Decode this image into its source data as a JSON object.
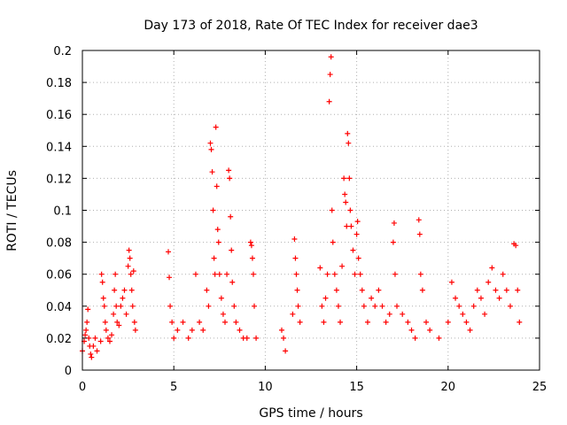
{
  "chart_data": {
    "type": "scatter",
    "title": "Day 173 of 2018, Rate Of TEC Index for receiver dae3",
    "xlabel": "GPS time / hours",
    "ylabel": "ROTI / TECUs",
    "xlim": [
      0,
      25
    ],
    "ylim": [
      0,
      0.2
    ],
    "x_ticks": [
      "0",
      "5",
      "10",
      "15",
      "20",
      "25"
    ],
    "y_ticks": [
      "0",
      "0.02",
      "0.04",
      "0.06",
      "0.08",
      "0.1",
      "0.12",
      "0.14",
      "0.16",
      "0.18",
      "0.2"
    ],
    "grid": true,
    "marker": "+",
    "color": "#ff0000",
    "series": [
      {
        "points": [
          [
            0.0,
            0.012
          ],
          [
            0.1,
            0.018
          ],
          [
            0.15,
            0.022
          ],
          [
            0.2,
            0.025
          ],
          [
            0.25,
            0.03
          ],
          [
            0.3,
            0.038
          ],
          [
            0.35,
            0.02
          ],
          [
            0.4,
            0.015
          ],
          [
            0.45,
            0.01
          ],
          [
            0.5,
            0.008
          ],
          [
            0.6,
            0.015
          ],
          [
            0.7,
            0.02
          ],
          [
            0.8,
            0.012
          ],
          [
            1.0,
            0.018
          ],
          [
            1.05,
            0.06
          ],
          [
            1.1,
            0.055
          ],
          [
            1.15,
            0.045
          ],
          [
            1.2,
            0.04
          ],
          [
            1.25,
            0.03
          ],
          [
            1.3,
            0.025
          ],
          [
            1.4,
            0.02
          ],
          [
            1.5,
            0.018
          ],
          [
            1.6,
            0.022
          ],
          [
            1.7,
            0.035
          ],
          [
            1.75,
            0.05
          ],
          [
            1.8,
            0.06
          ],
          [
            1.85,
            0.04
          ],
          [
            1.9,
            0.03
          ],
          [
            2.0,
            0.028
          ],
          [
            2.1,
            0.04
          ],
          [
            2.2,
            0.045
          ],
          [
            2.3,
            0.05
          ],
          [
            2.4,
            0.035
          ],
          [
            2.5,
            0.065
          ],
          [
            2.55,
            0.075
          ],
          [
            2.6,
            0.07
          ],
          [
            2.65,
            0.06
          ],
          [
            2.7,
            0.05
          ],
          [
            2.75,
            0.04
          ],
          [
            2.8,
            0.062
          ],
          [
            2.85,
            0.03
          ],
          [
            2.9,
            0.025
          ],
          [
            4.7,
            0.074
          ],
          [
            4.75,
            0.058
          ],
          [
            4.8,
            0.04
          ],
          [
            4.9,
            0.03
          ],
          [
            5.0,
            0.02
          ],
          [
            5.2,
            0.025
          ],
          [
            5.5,
            0.03
          ],
          [
            5.8,
            0.02
          ],
          [
            6.0,
            0.025
          ],
          [
            6.2,
            0.06
          ],
          [
            6.4,
            0.03
          ],
          [
            6.6,
            0.025
          ],
          [
            6.8,
            0.05
          ],
          [
            6.9,
            0.04
          ],
          [
            7.0,
            0.142
          ],
          [
            7.05,
            0.138
          ],
          [
            7.1,
            0.124
          ],
          [
            7.15,
            0.1
          ],
          [
            7.2,
            0.07
          ],
          [
            7.25,
            0.06
          ],
          [
            7.3,
            0.152
          ],
          [
            7.35,
            0.115
          ],
          [
            7.4,
            0.088
          ],
          [
            7.45,
            0.08
          ],
          [
            7.5,
            0.06
          ],
          [
            7.6,
            0.045
          ],
          [
            7.7,
            0.035
          ],
          [
            7.8,
            0.03
          ],
          [
            7.9,
            0.06
          ],
          [
            8.0,
            0.125
          ],
          [
            8.05,
            0.12
          ],
          [
            8.1,
            0.096
          ],
          [
            8.15,
            0.075
          ],
          [
            8.2,
            0.055
          ],
          [
            8.3,
            0.04
          ],
          [
            8.4,
            0.03
          ],
          [
            8.6,
            0.025
          ],
          [
            8.8,
            0.02
          ],
          [
            9.0,
            0.02
          ],
          [
            9.2,
            0.08
          ],
          [
            9.25,
            0.078
          ],
          [
            9.3,
            0.07
          ],
          [
            9.35,
            0.06
          ],
          [
            9.4,
            0.04
          ],
          [
            9.5,
            0.02
          ],
          [
            10.9,
            0.025
          ],
          [
            11.0,
            0.02
          ],
          [
            11.1,
            0.012
          ],
          [
            11.5,
            0.035
          ],
          [
            11.6,
            0.082
          ],
          [
            11.65,
            0.07
          ],
          [
            11.7,
            0.06
          ],
          [
            11.75,
            0.05
          ],
          [
            11.8,
            0.04
          ],
          [
            11.9,
            0.03
          ],
          [
            13.0,
            0.064
          ],
          [
            13.1,
            0.04
          ],
          [
            13.2,
            0.03
          ],
          [
            13.3,
            0.045
          ],
          [
            13.4,
            0.06
          ],
          [
            13.5,
            0.168
          ],
          [
            13.55,
            0.185
          ],
          [
            13.6,
            0.196
          ],
          [
            13.65,
            0.1
          ],
          [
            13.7,
            0.08
          ],
          [
            13.8,
            0.06
          ],
          [
            13.9,
            0.05
          ],
          [
            14.0,
            0.04
          ],
          [
            14.1,
            0.03
          ],
          [
            14.2,
            0.065
          ],
          [
            14.3,
            0.12
          ],
          [
            14.35,
            0.11
          ],
          [
            14.4,
            0.105
          ],
          [
            14.45,
            0.09
          ],
          [
            14.5,
            0.148
          ],
          [
            14.55,
            0.142
          ],
          [
            14.6,
            0.12
          ],
          [
            14.65,
            0.1
          ],
          [
            14.7,
            0.09
          ],
          [
            14.8,
            0.075
          ],
          [
            14.9,
            0.06
          ],
          [
            15.0,
            0.085
          ],
          [
            15.05,
            0.093
          ],
          [
            15.1,
            0.07
          ],
          [
            15.2,
            0.06
          ],
          [
            15.3,
            0.05
          ],
          [
            15.4,
            0.04
          ],
          [
            15.6,
            0.03
          ],
          [
            15.8,
            0.045
          ],
          [
            16.0,
            0.04
          ],
          [
            16.2,
            0.05
          ],
          [
            16.4,
            0.04
          ],
          [
            16.6,
            0.03
          ],
          [
            16.8,
            0.035
          ],
          [
            17.0,
            0.08
          ],
          [
            17.05,
            0.092
          ],
          [
            17.1,
            0.06
          ],
          [
            17.2,
            0.04
          ],
          [
            17.5,
            0.035
          ],
          [
            17.8,
            0.03
          ],
          [
            18.0,
            0.025
          ],
          [
            18.2,
            0.02
          ],
          [
            18.4,
            0.094
          ],
          [
            18.45,
            0.085
          ],
          [
            18.5,
            0.06
          ],
          [
            18.6,
            0.05
          ],
          [
            18.8,
            0.03
          ],
          [
            19.0,
            0.025
          ],
          [
            19.5,
            0.02
          ],
          [
            20.0,
            0.03
          ],
          [
            20.2,
            0.055
          ],
          [
            20.4,
            0.045
          ],
          [
            20.6,
            0.04
          ],
          [
            20.8,
            0.035
          ],
          [
            21.0,
            0.03
          ],
          [
            21.2,
            0.025
          ],
          [
            21.4,
            0.04
          ],
          [
            21.6,
            0.05
          ],
          [
            21.8,
            0.045
          ],
          [
            22.0,
            0.035
          ],
          [
            22.2,
            0.055
          ],
          [
            22.4,
            0.064
          ],
          [
            22.6,
            0.05
          ],
          [
            22.8,
            0.045
          ],
          [
            23.0,
            0.06
          ],
          [
            23.2,
            0.05
          ],
          [
            23.4,
            0.04
          ],
          [
            23.6,
            0.079
          ],
          [
            23.7,
            0.078
          ],
          [
            23.8,
            0.05
          ],
          [
            23.9,
            0.03
          ]
        ]
      }
    ]
  }
}
